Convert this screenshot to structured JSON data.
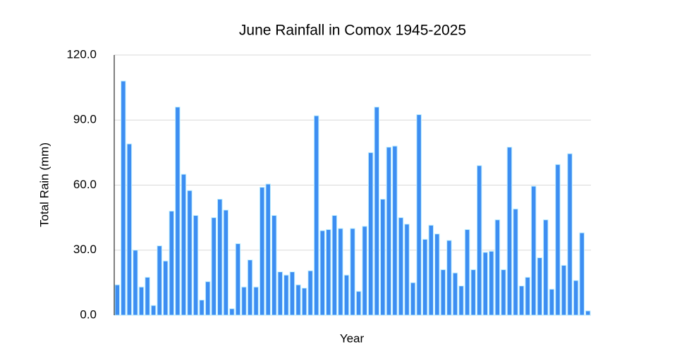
{
  "chart_data": {
    "type": "bar",
    "title": "June Rainfall in Comox 1945-2025",
    "x_label": "Year",
    "y_label": "Total Rain (mm)",
    "color": "#3d8ef2",
    "grid": true,
    "ylim": [
      0,
      120
    ],
    "yticks": [
      {
        "value": 0,
        "label": "0.0"
      },
      {
        "value": 30,
        "label": "30.0"
      },
      {
        "value": 60,
        "label": "60.0"
      },
      {
        "value": 90,
        "label": "90.0"
      },
      {
        "value": 120,
        "label": "120.0"
      }
    ],
    "categories": [
      null,
      null,
      null,
      null,
      null,
      null,
      null,
      null,
      null,
      null,
      null,
      null,
      null,
      null,
      null,
      null,
      null,
      null,
      null,
      null,
      null,
      null,
      null,
      null,
      null,
      null,
      null,
      null,
      null,
      null,
      null,
      null,
      null,
      null,
      null,
      null,
      null,
      null,
      null,
      null,
      null,
      null,
      null,
      null,
      null,
      null,
      null,
      null,
      null,
      null,
      null,
      null,
      null,
      null,
      null,
      null,
      null,
      null,
      null,
      null,
      null,
      null,
      null,
      null,
      null,
      null,
      null,
      null,
      null,
      null,
      null,
      null,
      null,
      null,
      null,
      null,
      null,
      null,
      null
    ],
    "values": [
      14,
      108,
      79,
      30,
      13,
      17.5,
      4.5,
      32,
      25,
      48,
      96,
      65,
      57.5,
      46,
      7,
      15.5,
      45,
      53.5,
      48.5,
      3,
      33,
      13,
      25.5,
      13,
      59,
      60.5,
      46,
      20,
      18.5,
      20,
      14,
      12.5,
      20.5,
      92,
      39,
      39.5,
      46,
      40,
      18.5,
      40,
      11,
      41,
      75,
      96,
      53.5,
      77.5,
      78,
      45,
      42,
      15,
      92.5,
      35,
      41.5,
      37.5,
      21,
      34.5,
      19.5,
      13.5,
      39.5,
      21,
      69,
      29,
      29.5,
      44,
      21,
      77.5,
      49,
      13.5,
      17.5,
      59.5,
      26.5,
      44,
      12,
      69.5,
      23,
      74.5,
      16,
      38,
      2
    ]
  }
}
